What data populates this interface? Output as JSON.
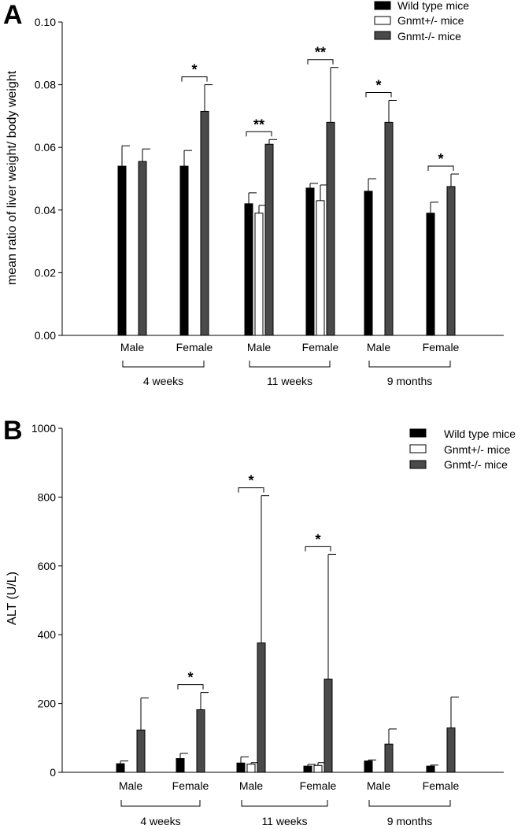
{
  "panels": [
    {
      "letter": "A",
      "ylabel": "mean ratio of liver weight/ body weight",
      "legend": [
        "Wild type mice",
        "Gnmt+/- mice",
        "Gnmt-/- mice"
      ]
    },
    {
      "letter": "B",
      "ylabel": "ALT (U/L)",
      "legend": [
        "Wild type mice",
        "Gnmt+/- mice",
        "Gnmt-/- mice"
      ]
    }
  ],
  "colors": {
    "wild_type": "#000000",
    "het": "#ffffff",
    "ko": "#4a4a4a"
  },
  "chart_data": [
    {
      "type": "bar",
      "panel": "A",
      "ylabel": "mean ratio of liver weight/ body weight",
      "ylim": [
        0,
        0.1
      ],
      "yticks": [
        "0.00",
        "0.02",
        "0.04",
        "0.06",
        "0.08",
        "0.10"
      ],
      "categories": [
        "Male",
        "Female",
        "Male",
        "Female",
        "Male",
        "Female"
      ],
      "groups": [
        "4 weeks",
        "11 weeks",
        "9 months"
      ],
      "series": [
        {
          "name": "Wild type mice",
          "values": [
            0.054,
            0.054,
            0.042,
            0.047,
            0.046,
            0.039
          ],
          "errors": [
            0.0065,
            0.005,
            0.0035,
            0.0015,
            0.004,
            0.0035
          ]
        },
        {
          "name": "Gnmt+/- mice",
          "values": [
            null,
            null,
            0.039,
            0.043,
            null,
            null
          ],
          "errors": [
            null,
            null,
            0.0025,
            0.005,
            null,
            null
          ]
        },
        {
          "name": "Gnmt-/- mice",
          "values": [
            0.0555,
            0.0715,
            0.061,
            0.068,
            0.068,
            0.0475
          ],
          "errors": [
            0.004,
            0.0085,
            0.0015,
            0.0175,
            0.007,
            0.004
          ]
        }
      ],
      "significance": [
        "",
        "*",
        "**",
        "**",
        "*",
        "*"
      ],
      "legend_position": "top-right",
      "grid": false
    },
    {
      "type": "bar",
      "panel": "B",
      "ylabel": "ALT (U/L)",
      "ylim": [
        0,
        1000
      ],
      "yticks": [
        "0",
        "200",
        "400",
        "600",
        "800",
        "1000"
      ],
      "categories": [
        "Male",
        "Female",
        "Male",
        "Female",
        "Male",
        "Female"
      ],
      "groups": [
        "4 weeks",
        "11 weeks",
        "9 months"
      ],
      "series": [
        {
          "name": "Wild type mice",
          "values": [
            25,
            40,
            27,
            18,
            33,
            18
          ],
          "errors": [
            8,
            15,
            18,
            5,
            3,
            3
          ]
        },
        {
          "name": "Gnmt+/- mice",
          "values": [
            null,
            null,
            24,
            20,
            null,
            null
          ],
          "errors": [
            null,
            null,
            4,
            8,
            null,
            null
          ]
        },
        {
          "name": "Gnmt-/- mice",
          "values": [
            123,
            182,
            376,
            271,
            82,
            129
          ],
          "errors": [
            93,
            50,
            428,
            362,
            44,
            90
          ]
        }
      ],
      "significance": [
        "",
        "*",
        "*",
        "*",
        "",
        ""
      ],
      "legend_position": "top-right",
      "grid": false
    }
  ]
}
